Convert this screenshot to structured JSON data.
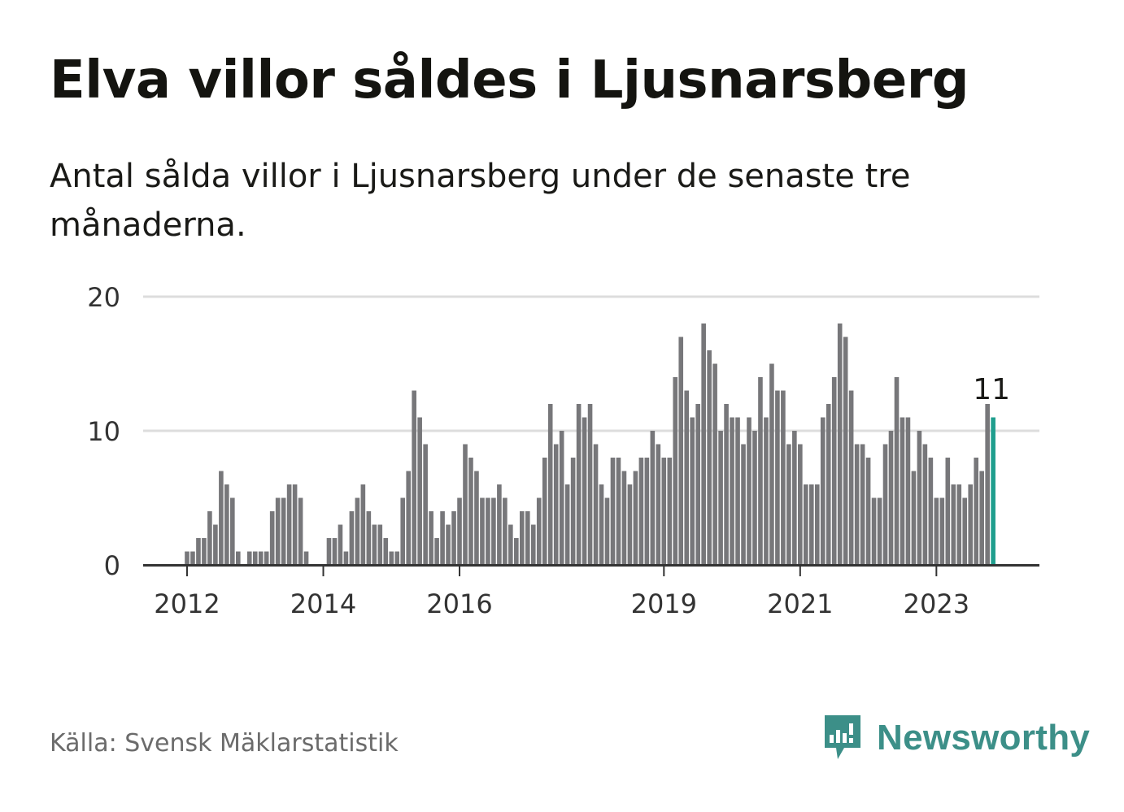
{
  "header": {
    "title": "Elva villor såldes i Ljusnarsberg",
    "subtitle": "Antal sålda villor i Ljusnarsberg under de senaste tre månaderna."
  },
  "footer": {
    "source": "Källa: Svensk Mäklarstatistik",
    "brand": "Newsworthy"
  },
  "colors": {
    "bar": "#77777a",
    "highlight": "#1f9e8e",
    "grid": "#dddddd",
    "axis": "#333333",
    "brand": "#3c8f88"
  },
  "icons": {
    "logo": "newsworthy-chart-bubble-icon"
  },
  "chart_data": {
    "type": "bar",
    "x_start": "2011-12",
    "x_end": "2024-01",
    "x_tick_labels": [
      {
        "date": "2012-01",
        "label": "2012"
      },
      {
        "date": "2014-01",
        "label": "2014"
      },
      {
        "date": "2016-01",
        "label": "2016"
      },
      {
        "date": "2019-01",
        "label": "2019"
      },
      {
        "date": "2021-01",
        "label": "2021"
      },
      {
        "date": "2023-01",
        "label": "2023"
      }
    ],
    "ylim": [
      0,
      20
    ],
    "y_ticks": [
      0,
      10,
      20
    ],
    "grid": true,
    "highlight_label": "11",
    "values": [
      0,
      1,
      1,
      2,
      2,
      4,
      3,
      7,
      6,
      5,
      1,
      0,
      1,
      1,
      1,
      1,
      4,
      5,
      5,
      6,
      6,
      5,
      1,
      0,
      0,
      0,
      2,
      2,
      3,
      1,
      4,
      5,
      6,
      4,
      3,
      3,
      2,
      1,
      1,
      5,
      7,
      13,
      11,
      9,
      4,
      2,
      4,
      3,
      4,
      5,
      9,
      8,
      7,
      5,
      5,
      5,
      6,
      5,
      3,
      2,
      4,
      4,
      3,
      5,
      8,
      12,
      9,
      10,
      6,
      8,
      12,
      11,
      12,
      9,
      6,
      5,
      8,
      8,
      7,
      6,
      7,
      8,
      8,
      10,
      9,
      8,
      8,
      14,
      17,
      13,
      11,
      12,
      18,
      16,
      15,
      10,
      12,
      11,
      11,
      9,
      11,
      10,
      14,
      11,
      15,
      13,
      13,
      9,
      10,
      9,
      6,
      6,
      6,
      11,
      12,
      14,
      18,
      17,
      13,
      9,
      9,
      8,
      5,
      5,
      9,
      10,
      14,
      11,
      11,
      7,
      10,
      9,
      8,
      5,
      5,
      8,
      6,
      6,
      5,
      6,
      8,
      7,
      12,
      11
    ]
  }
}
